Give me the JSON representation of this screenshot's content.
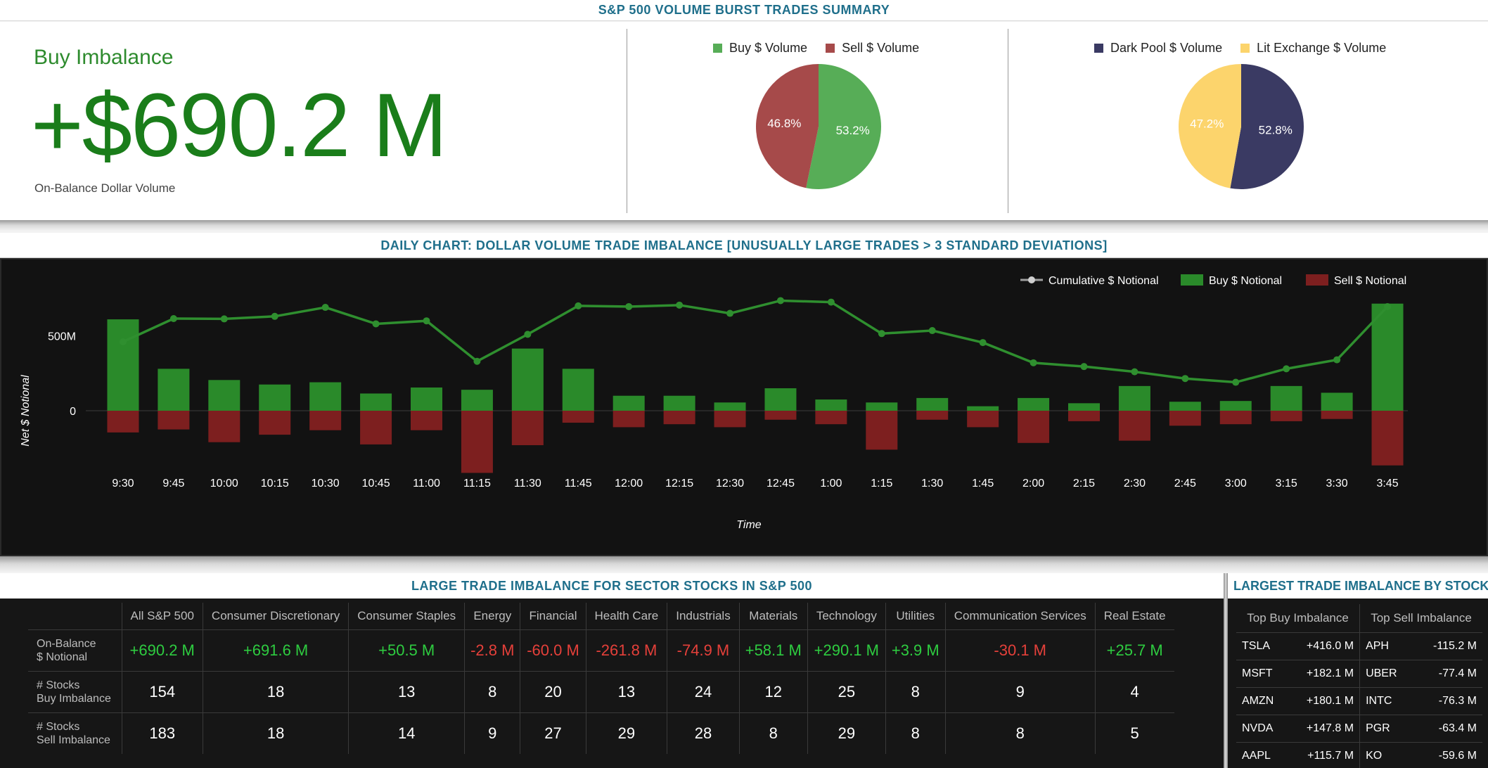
{
  "header": {
    "title": "S&P 500 VOLUME BURST TRADES SUMMARY"
  },
  "imbalance": {
    "title": "Buy Imbalance",
    "value": "+$690.2 M",
    "subtitle": "On-Balance Dollar Volume"
  },
  "pie_buy_sell": {
    "legend": [
      {
        "label": "Buy $ Volume",
        "color": "#57ad57"
      },
      {
        "label": "Sell $ Volume",
        "color": "#a64a4a"
      }
    ],
    "slices": [
      {
        "label": "53.2%",
        "value": 53.2,
        "color": "#57ad57"
      },
      {
        "label": "46.8%",
        "value": 46.8,
        "color": "#a64a4a"
      }
    ]
  },
  "pie_venue": {
    "legend": [
      {
        "label": "Dark Pool $ Volume",
        "color": "#3a3a63"
      },
      {
        "label": "Lit Exchange $ Volume",
        "color": "#fcd46c"
      }
    ],
    "slices": [
      {
        "label": "52.8%",
        "value": 52.8,
        "color": "#3a3a63"
      },
      {
        "label": "47.2%",
        "value": 47.2,
        "color": "#fcd46c"
      }
    ]
  },
  "daily_chart": {
    "title": "DAILY CHART: DOLLAR VOLUME TRADE IMBALANCE [UNUSUALLY LARGE TRADES > 3 STANDARD DEVIATIONS]"
  },
  "chart_data": {
    "type": "bar",
    "xlabel": "Time",
    "ylabel": "Net $ Notional",
    "y_ticks": [
      {
        "value": 0,
        "label": "0"
      },
      {
        "value": 500,
        "label": "500M"
      }
    ],
    "ylim": [
      -440,
      780
    ],
    "legend_position": "top-right",
    "categories": [
      "9:30",
      "9:45",
      "10:00",
      "10:15",
      "10:30",
      "10:45",
      "11:00",
      "11:15",
      "11:30",
      "11:45",
      "12:00",
      "12:15",
      "12:30",
      "12:45",
      "1:00",
      "1:15",
      "1:30",
      "1:45",
      "2:00",
      "2:15",
      "2:30",
      "2:45",
      "3:00",
      "3:15",
      "3:30",
      "3:45"
    ],
    "series": [
      {
        "name": "Cumulative $ Notional",
        "kind": "line",
        "color": "#2f8f2f",
        "values": [
          460,
          615,
          613,
          630,
          690,
          580,
          600,
          330,
          510,
          700,
          695,
          705,
          650,
          735,
          725,
          515,
          535,
          455,
          320,
          295,
          260,
          215,
          190,
          280,
          340,
          695
        ]
      },
      {
        "name": "Buy $ Notional",
        "kind": "bar",
        "color": "#2a8a2a",
        "values": [
          610,
          280,
          205,
          175,
          190,
          115,
          155,
          140,
          415,
          280,
          100,
          100,
          55,
          150,
          75,
          55,
          85,
          30,
          85,
          50,
          165,
          60,
          65,
          165,
          120,
          715
        ]
      },
      {
        "name": "Sell $ Notional",
        "kind": "bar",
        "color": "#7d1f1f",
        "values": [
          -145,
          -125,
          -210,
          -160,
          -130,
          -225,
          -130,
          -415,
          -230,
          -80,
          -110,
          -90,
          -110,
          -60,
          -90,
          -260,
          -60,
          -110,
          -215,
          -70,
          -200,
          -100,
          -90,
          -70,
          -55,
          -365
        ]
      }
    ]
  },
  "sector": {
    "title": "LARGE TRADE IMBALANCE FOR SECTOR STOCKS IN S&P 500",
    "columns": [
      "All S&P 500",
      "Consumer Discretionary",
      "Consumer Staples",
      "Energy",
      "Financial",
      "Health Care",
      "Industrials",
      "Materials",
      "Technology",
      "Utilities",
      "Communication Services",
      "Real Estate"
    ],
    "rows": [
      {
        "label_lines": [
          "On-Balance",
          "$ Notional"
        ],
        "colored": true,
        "values": [
          "+690.2 M",
          "+691.6 M",
          "+50.5 M",
          "-2.8 M",
          "-60.0 M",
          "-261.8 M",
          "-74.9 M",
          "+58.1 M",
          "+290.1 M",
          "+3.9 M",
          "-30.1 M",
          "+25.7 M"
        ]
      },
      {
        "label_lines": [
          "# Stocks",
          "Buy Imbalance"
        ],
        "colored": false,
        "values": [
          "154",
          "18",
          "13",
          "8",
          "20",
          "13",
          "24",
          "12",
          "25",
          "8",
          "9",
          "4"
        ]
      },
      {
        "label_lines": [
          "# Stocks",
          "Sell Imbalance"
        ],
        "colored": false,
        "values": [
          "183",
          "18",
          "14",
          "9",
          "27",
          "29",
          "28",
          "8",
          "29",
          "8",
          "8",
          "5"
        ]
      }
    ]
  },
  "stocks": {
    "title": "LARGEST TRADE IMBALANCE BY STOCK",
    "headers": [
      "Top Buy Imbalance",
      "Top Sell Imbalance"
    ],
    "rows": [
      {
        "buy_ticker": "TSLA",
        "buy_value": "+416.0 M",
        "sell_ticker": "APH",
        "sell_value": "-115.2 M"
      },
      {
        "buy_ticker": "MSFT",
        "buy_value": "+182.1 M",
        "sell_ticker": "UBER",
        "sell_value": "-77.4 M"
      },
      {
        "buy_ticker": "AMZN",
        "buy_value": "+180.1 M",
        "sell_ticker": "INTC",
        "sell_value": "-76.3 M"
      },
      {
        "buy_ticker": "NVDA",
        "buy_value": "+147.8 M",
        "sell_ticker": "PGR",
        "sell_value": "-63.4 M"
      },
      {
        "buy_ticker": "AAPL",
        "buy_value": "+115.7 M",
        "sell_ticker": "KO",
        "sell_value": "-59.6 M"
      }
    ]
  }
}
